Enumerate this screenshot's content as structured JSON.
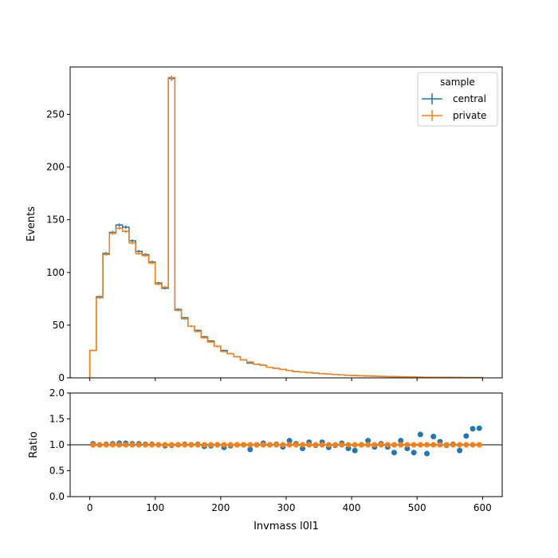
{
  "chart_data": {
    "type": "histogram",
    "xlabel": "Invmass l0l1",
    "main": {
      "ylabel": "Events",
      "ylim": [
        0,
        295
      ],
      "yticks": [
        0,
        50,
        100,
        150,
        200,
        250
      ]
    },
    "ratio": {
      "ylabel": "Ratio",
      "ylim": [
        0.0,
        2.0
      ],
      "yticks": [
        "0.0",
        "0.5",
        "1.0",
        "1.5",
        "2.0"
      ],
      "reference_line": 1.0
    },
    "xlim": [
      -30,
      630
    ],
    "xticks": [
      0,
      100,
      200,
      300,
      400,
      500,
      600
    ],
    "bin_edges": [
      0,
      10,
      20,
      30,
      40,
      50,
      60,
      70,
      80,
      90,
      100,
      110,
      120,
      130,
      140,
      150,
      160,
      170,
      180,
      190,
      200,
      210,
      220,
      230,
      240,
      250,
      260,
      270,
      280,
      290,
      300,
      310,
      320,
      330,
      340,
      350,
      360,
      370,
      380,
      390,
      400,
      410,
      420,
      430,
      440,
      450,
      460,
      470,
      480,
      490,
      500,
      510,
      520,
      530,
      540,
      550,
      560,
      570,
      580,
      590,
      600
    ],
    "series": [
      {
        "name": "central",
        "color": "#1f77b4",
        "values": [
          26,
          77,
          118,
          138,
          145,
          143,
          130,
          120,
          117,
          110,
          90,
          85,
          284,
          65,
          57,
          49,
          45,
          39,
          35,
          30,
          26,
          23,
          20,
          17,
          14,
          13,
          12,
          10,
          9,
          8,
          7,
          6,
          5.5,
          5,
          4.5,
          4,
          3.6,
          3.2,
          2.8,
          2.5,
          2.2,
          2,
          1.8,
          1.6,
          1.4,
          1.2,
          1.1,
          1,
          0.9,
          0.8,
          0.7,
          0.6,
          0.55,
          0.5,
          0.45,
          0.4,
          0.35,
          0.3,
          0.28,
          0.26
        ],
        "ratio": [
          1.02,
          1.0,
          1.01,
          1.02,
          1.03,
          1.03,
          1.02,
          1.02,
          1.01,
          1.01,
          1.0,
          0.98,
          0.99,
          1.0,
          1.01,
          1.0,
          1.01,
          0.97,
          0.98,
          1.0,
          0.95,
          0.98,
          1.0,
          1.0,
          0.91,
          1.0,
          1.03,
          1.0,
          1.01,
          0.96,
          1.08,
          1.02,
          0.93,
          1.05,
          0.99,
          1.05,
          0.95,
          0.99,
          1.03,
          0.93,
          0.89,
          1.0,
          1.08,
          0.96,
          1.02,
          0.96,
          0.85,
          1.08,
          0.93,
          0.85,
          1.2,
          0.83,
          1.16,
          1.06,
          0.99,
          1.01,
          0.89,
          1.17,
          1.31,
          1.32
        ]
      },
      {
        "name": "private",
        "color": "#ff7f0e",
        "values": [
          26,
          76,
          117,
          137,
          142,
          139,
          128,
          118,
          116,
          109,
          89,
          86,
          285,
          64,
          56,
          49,
          44,
          38,
          34,
          30,
          25,
          23,
          20,
          17,
          15,
          13,
          12,
          10,
          9,
          8,
          7,
          6,
          5.5,
          5,
          4.5,
          4,
          3.6,
          3.2,
          2.8,
          2.5,
          2.2,
          2,
          1.8,
          1.6,
          1.4,
          1.2,
          1.1,
          1,
          0.9,
          0.8,
          0.7,
          0.6,
          0.55,
          0.5,
          0.45,
          0.4,
          0.35,
          0.3,
          0.28,
          0.26
        ],
        "ratio": [
          1.0,
          1.0,
          1.0,
          1.0,
          1.0,
          1.0,
          1.0,
          1.0,
          1.0,
          1.0,
          1.0,
          1.0,
          1.0,
          1.0,
          1.0,
          1.0,
          1.0,
          1.0,
          1.0,
          1.0,
          1.0,
          1.0,
          1.0,
          1.0,
          1.0,
          1.0,
          1.0,
          1.0,
          1.0,
          1.0,
          1.0,
          1.0,
          1.0,
          1.0,
          1.0,
          1.0,
          1.0,
          1.0,
          1.0,
          1.0,
          1.0,
          1.0,
          1.0,
          1.0,
          1.0,
          1.0,
          1.0,
          1.0,
          1.0,
          1.0,
          1.0,
          1.0,
          1.0,
          1.0,
          1.0,
          1.0,
          1.0,
          1.0,
          1.0,
          1.0
        ]
      }
    ],
    "legend": {
      "title": "sample",
      "placement": "top-right",
      "entries": [
        "central",
        "private"
      ]
    },
    "grid": false,
    "ratio_marker_colors": {
      "central": "#1f77b4",
      "private": "#ff7f0e"
    }
  }
}
